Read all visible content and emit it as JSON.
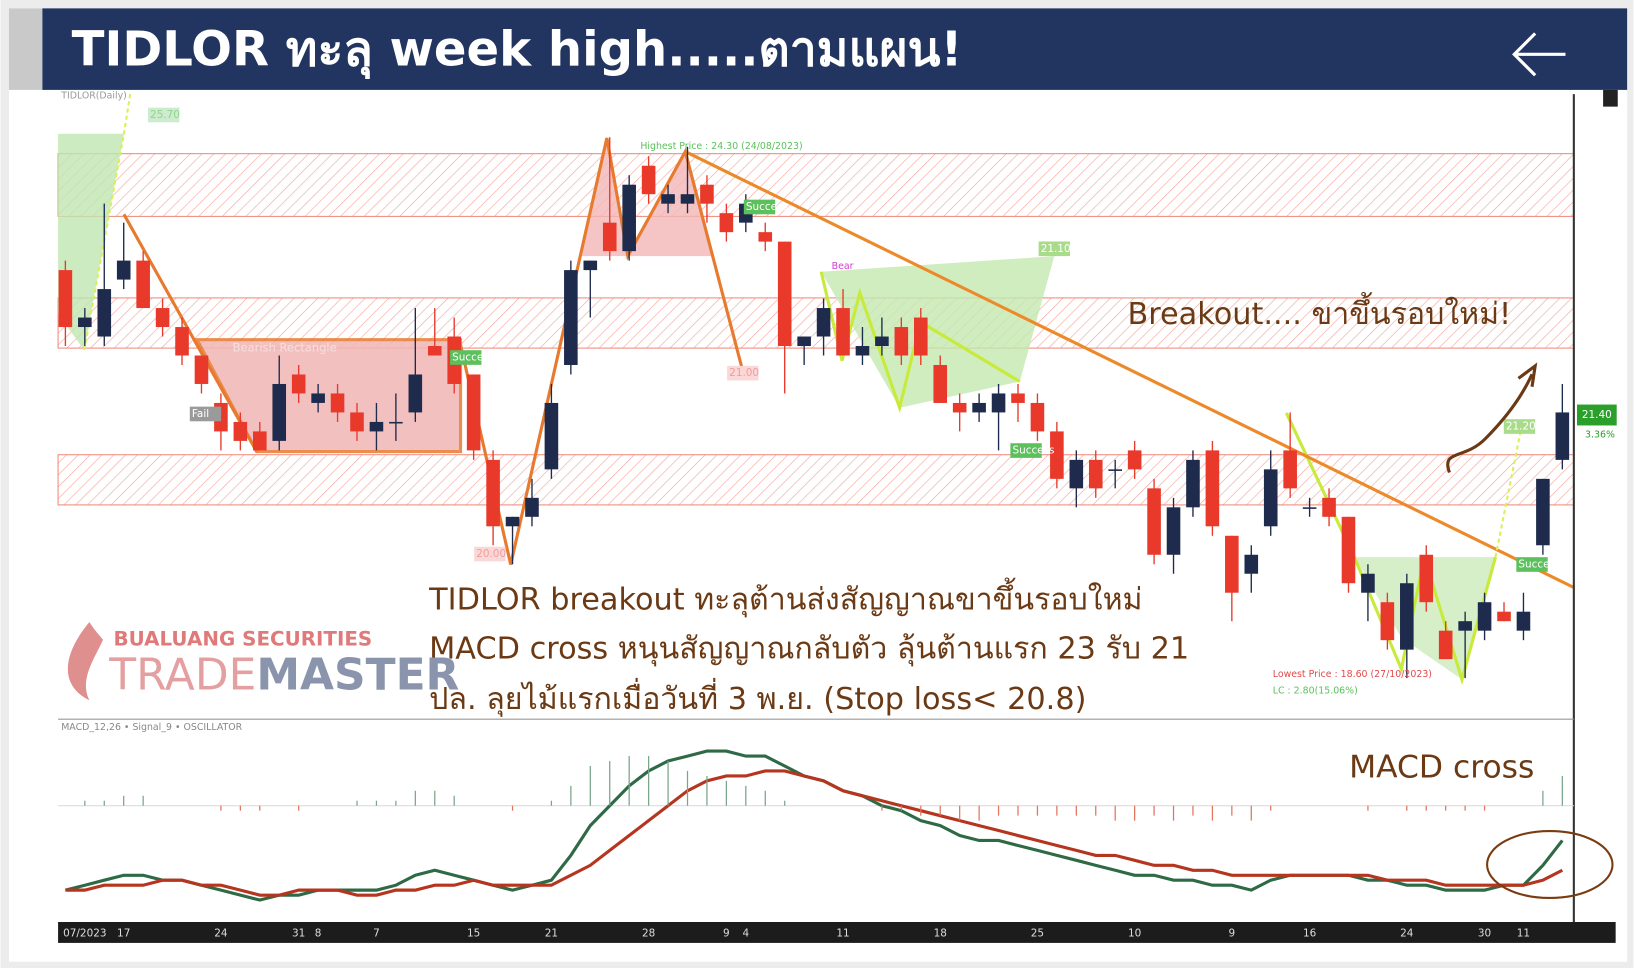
{
  "header": {
    "title": "TIDLOR ทะลุ week high.....ตามแผน!"
  },
  "annotations": {
    "breakout": "Breakout.... ขาขึ้นรอบใหม่!",
    "lines": [
      "TIDLOR breakout ทะลุต้านส่งสัญญาณขาขึ้นรอบใหม่",
      "MACD cross หนุนสัญญาณกลับตัว ลุ้นต้านแรก 23 รับ 21",
      "ปล. ลุยไม้แรกเมื่อวันที่ 3 พ.ย. (Stop loss< 20.8)"
    ],
    "macd_cross": "MACD cross"
  },
  "logo": {
    "company": "BUALUANG SECURITIES",
    "trade": "TRADE",
    "master": "MASTER"
  },
  "chart_labels": [
    "TIDLOR(Daily)",
    "25.70",
    "Highest Price : 24.30 (24/08/2023)",
    "Bearish Rectangle",
    "Fail",
    "Success",
    "Success",
    "Success",
    "Success",
    "21.00",
    "20.00",
    "21.10",
    "21.20",
    "Bear",
    "Lowest Price : 18.60 (27/10/2023)",
    "LC : 2.80(15.06%)"
  ],
  "price_label": "21.40",
  "change_label": "3.36%",
  "chart_data": [
    {
      "type": "candlestick",
      "title": "TIDLOR(Daily)",
      "up_color": "#1f2b4d",
      "down_color": "#e8392b",
      "ylim": [
        18.2,
        24.7
      ],
      "categories": [
        null,
        "07/2023",
        null,
        "17",
        null,
        null,
        null,
        null,
        "24",
        null,
        null,
        null,
        "31",
        "8",
        null,
        null,
        "7",
        null,
        null,
        null,
        null,
        "15",
        null,
        null,
        null,
        "21",
        null,
        null,
        null,
        null,
        "28",
        null,
        null,
        null,
        "9",
        "4",
        null,
        null,
        null,
        null,
        "11",
        null,
        null,
        null,
        null,
        "18",
        null,
        null,
        null,
        null,
        "25",
        null,
        null,
        null,
        null,
        "10",
        null,
        null,
        null,
        null,
        "9",
        null,
        null,
        null,
        "16",
        null,
        null,
        null,
        null,
        "24",
        null,
        null,
        null,
        "30",
        null,
        "11",
        null,
        null
      ],
      "open": [
        22.9,
        22.3,
        22.2,
        22.8,
        23.0,
        22.5,
        22.3,
        22.0,
        21.5,
        21.3,
        21.2,
        21.1,
        21.8,
        21.5,
        21.6,
        21.4,
        21.2,
        21.3,
        21.4,
        22.1,
        22.2,
        21.8,
        20.9,
        20.2,
        20.3,
        20.8,
        21.9,
        22.9,
        23.4,
        23.1,
        24.0,
        23.6,
        23.6,
        23.8,
        23.5,
        23.4,
        23.3,
        23.2,
        22.1,
        22.2,
        22.5,
        22.0,
        22.1,
        22.3,
        22.4,
        21.9,
        21.5,
        21.4,
        21.4,
        21.6,
        21.5,
        21.2,
        20.6,
        20.9,
        20.8,
        21.0,
        20.6,
        19.9,
        20.4,
        21.0,
        20.1,
        19.7,
        20.2,
        21.0,
        20.4,
        20.5,
        20.3,
        19.5,
        19.4,
        18.9,
        19.9,
        19.1,
        19.1,
        19.1,
        19.3,
        19.1,
        20.0,
        20.9
      ],
      "high": [
        23.0,
        22.5,
        23.6,
        23.4,
        23.1,
        22.6,
        22.4,
        22.0,
        21.6,
        21.4,
        21.3,
        22.0,
        21.9,
        21.7,
        21.7,
        21.5,
        21.5,
        21.6,
        22.5,
        22.5,
        22.4,
        21.8,
        21.0,
        20.3,
        20.7,
        21.7,
        23.0,
        23.0,
        24.3,
        23.9,
        24.1,
        23.8,
        24.2,
        23.9,
        23.6,
        23.7,
        23.4,
        23.2,
        22.2,
        22.6,
        22.7,
        22.3,
        22.4,
        22.4,
        22.5,
        22.0,
        21.6,
        21.6,
        21.7,
        21.7,
        21.6,
        21.3,
        21.0,
        21.0,
        20.9,
        21.1,
        20.7,
        20.5,
        21.0,
        21.1,
        20.1,
        20.0,
        21.0,
        21.4,
        20.5,
        20.6,
        20.3,
        19.8,
        19.5,
        19.7,
        20.0,
        19.2,
        19.3,
        19.5,
        19.4,
        19.5,
        20.7,
        21.7
      ],
      "low": [
        22.1,
        22.1,
        22.1,
        22.7,
        22.5,
        22.2,
        21.9,
        21.6,
        21.0,
        21.0,
        21.0,
        21.0,
        21.5,
        21.4,
        21.3,
        21.1,
        21.0,
        21.1,
        21.3,
        22.0,
        21.6,
        20.9,
        20.0,
        19.8,
        20.2,
        20.7,
        21.8,
        22.4,
        23.0,
        23.0,
        23.6,
        23.5,
        23.5,
        23.4,
        23.2,
        23.3,
        23.1,
        21.6,
        21.9,
        22.0,
        22.0,
        21.9,
        22.0,
        21.9,
        21.9,
        21.5,
        21.2,
        21.3,
        21.0,
        21.3,
        21.1,
        20.6,
        20.4,
        20.5,
        20.6,
        20.7,
        19.8,
        19.7,
        20.3,
        20.1,
        19.2,
        19.5,
        20.1,
        20.5,
        20.3,
        20.2,
        19.5,
        19.2,
        18.9,
        18.6,
        19.3,
        18.8,
        18.6,
        19.0,
        19.2,
        19.0,
        19.9,
        20.8
      ],
      "close": [
        22.3,
        22.4,
        22.7,
        23.0,
        22.5,
        22.3,
        22.0,
        21.7,
        21.2,
        21.1,
        21.0,
        21.7,
        21.6,
        21.6,
        21.4,
        21.2,
        21.3,
        21.3,
        21.8,
        22.0,
        21.7,
        21.0,
        20.2,
        20.3,
        20.5,
        21.5,
        22.9,
        23.0,
        23.1,
        23.8,
        23.7,
        23.7,
        23.7,
        23.6,
        23.3,
        23.6,
        23.2,
        22.1,
        22.2,
        22.5,
        22.0,
        22.1,
        22.2,
        22.0,
        22.0,
        21.5,
        21.4,
        21.5,
        21.6,
        21.5,
        21.2,
        20.7,
        20.9,
        20.6,
        20.8,
        20.8,
        19.9,
        20.4,
        20.9,
        20.2,
        19.5,
        19.9,
        20.8,
        20.6,
        20.4,
        20.3,
        19.6,
        19.7,
        19.0,
        19.6,
        19.4,
        18.8,
        19.2,
        19.4,
        19.2,
        19.3,
        20.7,
        21.4
      ]
    },
    {
      "type": "line",
      "title": "MACD_12,26 • Signal_9 • OSCILLATOR",
      "ylim": [
        -0.23,
        0.17
      ],
      "series": [
        {
          "color": "#2e6a45",
          "values": [
            -0.17,
            -0.16,
            -0.15,
            -0.14,
            -0.14,
            -0.15,
            -0.15,
            -0.16,
            -0.17,
            -0.18,
            -0.19,
            -0.18,
            -0.18,
            -0.17,
            -0.17,
            -0.17,
            -0.17,
            -0.16,
            -0.14,
            -0.13,
            -0.14,
            -0.15,
            -0.16,
            -0.17,
            -0.16,
            -0.15,
            -0.1,
            -0.04,
            0.0,
            0.04,
            0.07,
            0.09,
            0.1,
            0.11,
            0.11,
            0.1,
            0.1,
            0.08,
            0.06,
            0.05,
            0.03,
            0.02,
            0.0,
            -0.01,
            -0.03,
            -0.04,
            -0.06,
            -0.07,
            -0.07,
            -0.08,
            -0.09,
            -0.1,
            -0.11,
            -0.12,
            -0.13,
            -0.14,
            -0.14,
            -0.15,
            -0.15,
            -0.16,
            -0.16,
            -0.17,
            -0.15,
            -0.14,
            -0.14,
            -0.14,
            -0.14,
            -0.15,
            -0.15,
            -0.16,
            -0.16,
            -0.17,
            -0.17,
            -0.17,
            -0.16,
            -0.16,
            -0.12,
            -0.07
          ]
        },
        {
          "color": "#b5351f",
          "values": [
            -0.17,
            -0.17,
            -0.16,
            -0.16,
            -0.16,
            -0.15,
            -0.15,
            -0.16,
            -0.16,
            -0.17,
            -0.18,
            -0.18,
            -0.17,
            -0.17,
            -0.17,
            -0.18,
            -0.18,
            -0.17,
            -0.17,
            -0.16,
            -0.16,
            -0.15,
            -0.16,
            -0.16,
            -0.16,
            -0.16,
            -0.14,
            -0.12,
            -0.09,
            -0.06,
            -0.03,
            0.0,
            0.03,
            0.05,
            0.06,
            0.06,
            0.07,
            0.07,
            0.06,
            0.05,
            0.03,
            0.02,
            0.01,
            0.0,
            -0.01,
            -0.02,
            -0.03,
            -0.04,
            -0.05,
            -0.06,
            -0.07,
            -0.08,
            -0.09,
            -0.1,
            -0.1,
            -0.11,
            -0.12,
            -0.12,
            -0.13,
            -0.13,
            -0.14,
            -0.14,
            -0.14,
            -0.14,
            -0.14,
            -0.14,
            -0.14,
            -0.14,
            -0.15,
            -0.15,
            -0.15,
            -0.16,
            -0.16,
            -0.16,
            -0.16,
            -0.16,
            -0.15,
            -0.13
          ]
        },
        {
          "type": "bar",
          "color": "#7aa58a",
          "negative_color": "#e0745f",
          "values": [
            0.0,
            0.01,
            0.01,
            0.02,
            0.02,
            0.0,
            0.0,
            0.0,
            -0.01,
            -0.01,
            -0.01,
            0.0,
            -0.01,
            0.0,
            0.0,
            0.01,
            0.01,
            0.01,
            0.03,
            0.03,
            0.02,
            0.0,
            0.0,
            -0.01,
            0.0,
            0.01,
            0.04,
            0.08,
            0.09,
            0.1,
            0.1,
            0.09,
            0.07,
            0.06,
            0.05,
            0.04,
            0.03,
            0.01,
            0.0,
            0.0,
            0.0,
            0.0,
            -0.01,
            -0.01,
            -0.02,
            -0.02,
            -0.03,
            -0.03,
            -0.02,
            -0.02,
            -0.02,
            -0.02,
            -0.02,
            -0.02,
            -0.03,
            -0.03,
            -0.02,
            -0.03,
            -0.02,
            -0.03,
            -0.02,
            -0.03,
            -0.01,
            0.0,
            0.0,
            0.0,
            0.0,
            -0.01,
            0.0,
            -0.01,
            -0.01,
            -0.01,
            -0.01,
            -0.01,
            0.0,
            0.0,
            0.03,
            0.06
          ]
        }
      ]
    }
  ]
}
